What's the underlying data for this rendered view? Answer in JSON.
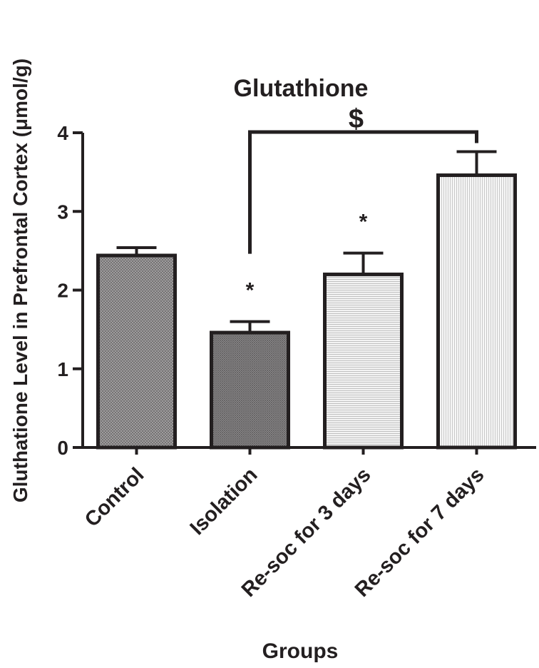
{
  "chart_data": {
    "type": "bar",
    "title": "Glutathione",
    "xlabel": "Groups",
    "ylabel": "Gluthatione Level in Prefrontal Cortex (μmol/g)",
    "categories": [
      "Control",
      "Isolation",
      "Re-soc for 3 days",
      "Re-soc for 7 days"
    ],
    "values": [
      2.44,
      1.46,
      2.2,
      3.46
    ],
    "errors": [
      0.1,
      0.14,
      0.27,
      0.3
    ],
    "significance_marks": [
      "",
      "*",
      "*",
      ""
    ],
    "bracket": {
      "from": "Isolation",
      "to": "Re-soc for 7 days",
      "label": "$"
    },
    "ylim": [
      0,
      4
    ],
    "yticks": [
      "0",
      "1",
      "2",
      "3",
      "4"
    ],
    "grid": false,
    "legend": "none",
    "bar_patterns": [
      "dense-crosshatch",
      "fine-crosshatch",
      "horizontal-lines",
      "vertical-lines"
    ]
  }
}
